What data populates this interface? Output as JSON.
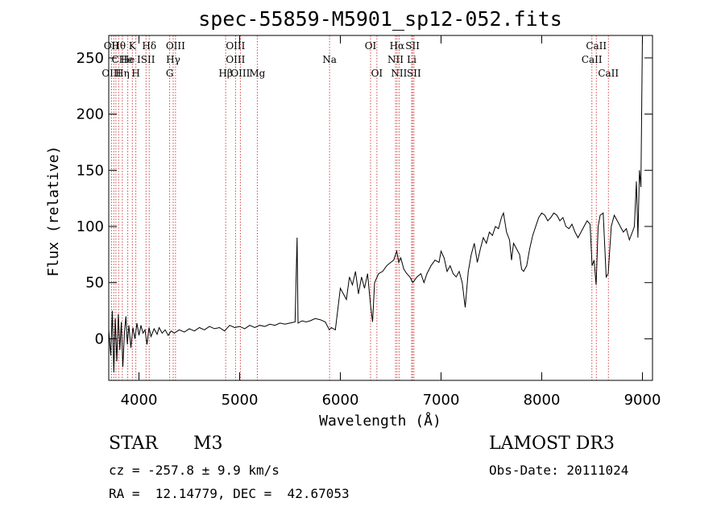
{
  "chart_data": {
    "type": "line",
    "title": "spec-55859-M5901_sp12-052.fits",
    "xlabel": "Wavelength (Å)",
    "ylabel": "Flux (relative)",
    "xlim": [
      3700,
      9100
    ],
    "ylim": [
      -37,
      270
    ],
    "x_ticks": [
      4000,
      5000,
      6000,
      7000,
      8000,
      9000
    ],
    "y_ticks": [
      0,
      50,
      100,
      150,
      200,
      250
    ],
    "series": [
      {
        "name": "spectrum",
        "points": [
          [
            3700,
            8
          ],
          [
            3720,
            -15
          ],
          [
            3735,
            25
          ],
          [
            3750,
            -30
          ],
          [
            3765,
            18
          ],
          [
            3780,
            -20
          ],
          [
            3795,
            22
          ],
          [
            3810,
            -10
          ],
          [
            3825,
            15
          ],
          [
            3840,
            -25
          ],
          [
            3855,
            5
          ],
          [
            3870,
            20
          ],
          [
            3885,
            -5
          ],
          [
            3900,
            12
          ],
          [
            3920,
            -8
          ],
          [
            3940,
            10
          ],
          [
            3960,
            0
          ],
          [
            3980,
            14
          ],
          [
            4000,
            3
          ],
          [
            4020,
            12
          ],
          [
            4040,
            5
          ],
          [
            4060,
            8
          ],
          [
            4080,
            -5
          ],
          [
            4100,
            10
          ],
          [
            4120,
            2
          ],
          [
            4150,
            9
          ],
          [
            4180,
            4
          ],
          [
            4200,
            10
          ],
          [
            4230,
            5
          ],
          [
            4260,
            8
          ],
          [
            4290,
            3
          ],
          [
            4320,
            7
          ],
          [
            4350,
            5
          ],
          [
            4400,
            8
          ],
          [
            4450,
            6
          ],
          [
            4500,
            9
          ],
          [
            4550,
            7
          ],
          [
            4600,
            10
          ],
          [
            4650,
            8
          ],
          [
            4700,
            11
          ],
          [
            4750,
            9
          ],
          [
            4800,
            10
          ],
          [
            4850,
            7
          ],
          [
            4900,
            12
          ],
          [
            4950,
            10
          ],
          [
            5000,
            11
          ],
          [
            5050,
            9
          ],
          [
            5100,
            12
          ],
          [
            5150,
            10
          ],
          [
            5200,
            12
          ],
          [
            5250,
            11
          ],
          [
            5300,
            13
          ],
          [
            5350,
            12
          ],
          [
            5400,
            14
          ],
          [
            5450,
            13
          ],
          [
            5500,
            14
          ],
          [
            5550,
            15
          ],
          [
            5570,
            90
          ],
          [
            5580,
            14
          ],
          [
            5620,
            16
          ],
          [
            5660,
            15
          ],
          [
            5700,
            16
          ],
          [
            5750,
            18
          ],
          [
            5800,
            17
          ],
          [
            5850,
            15
          ],
          [
            5890,
            8
          ],
          [
            5910,
            10
          ],
          [
            5950,
            8
          ],
          [
            6000,
            45
          ],
          [
            6030,
            40
          ],
          [
            6060,
            35
          ],
          [
            6090,
            55
          ],
          [
            6120,
            48
          ],
          [
            6150,
            60
          ],
          [
            6180,
            40
          ],
          [
            6210,
            55
          ],
          [
            6240,
            45
          ],
          [
            6270,
            58
          ],
          [
            6300,
            30
          ],
          [
            6320,
            15
          ],
          [
            6340,
            50
          ],
          [
            6380,
            58
          ],
          [
            6420,
            60
          ],
          [
            6460,
            65
          ],
          [
            6500,
            68
          ],
          [
            6530,
            70
          ],
          [
            6560,
            78
          ],
          [
            6580,
            68
          ],
          [
            6600,
            72
          ],
          [
            6630,
            62
          ],
          [
            6660,
            58
          ],
          [
            6690,
            55
          ],
          [
            6720,
            50
          ],
          [
            6760,
            55
          ],
          [
            6800,
            58
          ],
          [
            6830,
            50
          ],
          [
            6860,
            58
          ],
          [
            6900,
            65
          ],
          [
            6940,
            70
          ],
          [
            6980,
            68
          ],
          [
            7000,
            78
          ],
          [
            7030,
            72
          ],
          [
            7060,
            60
          ],
          [
            7090,
            65
          ],
          [
            7120,
            58
          ],
          [
            7150,
            55
          ],
          [
            7180,
            60
          ],
          [
            7210,
            50
          ],
          [
            7240,
            28
          ],
          [
            7270,
            60
          ],
          [
            7300,
            75
          ],
          [
            7330,
            85
          ],
          [
            7360,
            68
          ],
          [
            7390,
            80
          ],
          [
            7420,
            90
          ],
          [
            7450,
            85
          ],
          [
            7480,
            95
          ],
          [
            7510,
            92
          ],
          [
            7540,
            100
          ],
          [
            7570,
            98
          ],
          [
            7600,
            108
          ],
          [
            7620,
            112
          ],
          [
            7650,
            95
          ],
          [
            7680,
            88
          ],
          [
            7700,
            70
          ],
          [
            7720,
            85
          ],
          [
            7750,
            80
          ],
          [
            7780,
            75
          ],
          [
            7800,
            62
          ],
          [
            7820,
            60
          ],
          [
            7850,
            65
          ],
          [
            7880,
            80
          ],
          [
            7910,
            92
          ],
          [
            7940,
            100
          ],
          [
            7970,
            108
          ],
          [
            8000,
            112
          ],
          [
            8030,
            110
          ],
          [
            8060,
            105
          ],
          [
            8090,
            108
          ],
          [
            8120,
            112
          ],
          [
            8150,
            110
          ],
          [
            8180,
            105
          ],
          [
            8210,
            108
          ],
          [
            8240,
            100
          ],
          [
            8270,
            98
          ],
          [
            8300,
            102
          ],
          [
            8330,
            95
          ],
          [
            8360,
            90
          ],
          [
            8390,
            95
          ],
          [
            8420,
            100
          ],
          [
            8450,
            105
          ],
          [
            8480,
            102
          ],
          [
            8500,
            65
          ],
          [
            8520,
            70
          ],
          [
            8540,
            48
          ],
          [
            8560,
            100
          ],
          [
            8580,
            110
          ],
          [
            8610,
            112
          ],
          [
            8640,
            55
          ],
          [
            8660,
            58
          ],
          [
            8690,
            100
          ],
          [
            8720,
            110
          ],
          [
            8750,
            105
          ],
          [
            8780,
            100
          ],
          [
            8810,
            95
          ],
          [
            8840,
            98
          ],
          [
            8870,
            88
          ],
          [
            8900,
            95
          ],
          [
            8920,
            100
          ],
          [
            8940,
            140
          ],
          [
            8955,
            90
          ],
          [
            8970,
            150
          ],
          [
            8985,
            135
          ],
          [
            9000,
            270
          ]
        ]
      }
    ],
    "spectral_lines": [
      {
        "label": "Hθ",
        "wavelength": 3798,
        "row": 1
      },
      {
        "label": "OII",
        "wavelength": 3727,
        "row": 1
      },
      {
        "label": "K",
        "wavelength": 3934,
        "row": 1
      },
      {
        "label": "Hδ",
        "wavelength": 4102,
        "row": 1
      },
      {
        "label": "OIII",
        "wavelength": 4363,
        "row": 1
      },
      {
        "label": "OIII",
        "wavelength": 4959,
        "row": 1
      },
      {
        "label": "OI",
        "wavelength": 6300,
        "row": 1
      },
      {
        "label": "Hα",
        "wavelength": 6563,
        "row": 1
      },
      {
        "label": "SII",
        "wavelength": 6717,
        "row": 1
      },
      {
        "label": "CaII",
        "wavelength": 8542,
        "row": 1
      },
      {
        "label": "CHe",
        "wavelength": 3835,
        "row": 2
      },
      {
        "label": "He",
        "wavelength": 3889,
        "row": 2
      },
      {
        "label": "ISII",
        "wavelength": 4070,
        "row": 2
      },
      {
        "label": "Hγ",
        "wavelength": 4340,
        "row": 2
      },
      {
        "label": "OIII",
        "wavelength": 4959,
        "row": 2
      },
      {
        "label": "Na",
        "wavelength": 5893,
        "row": 2
      },
      {
        "label": "NII",
        "wavelength": 6548,
        "row": 2
      },
      {
        "label": "Li",
        "wavelength": 6708,
        "row": 2
      },
      {
        "label": "CaII",
        "wavelength": 8498,
        "row": 2
      },
      {
        "label": "OIII",
        "wavelength": 3727,
        "row": 3
      },
      {
        "label": "Hη",
        "wavelength": 3835,
        "row": 3
      },
      {
        "label": "H",
        "wavelength": 3969,
        "row": 3
      },
      {
        "label": "G",
        "wavelength": 4305,
        "row": 3
      },
      {
        "label": "Hβ",
        "wavelength": 4861,
        "row": 3
      },
      {
        "label": "OIII",
        "wavelength": 5007,
        "row": 3
      },
      {
        "label": "Mg",
        "wavelength": 5175,
        "row": 3
      },
      {
        "label": "OI",
        "wavelength": 6363,
        "row": 3
      },
      {
        "label": "NII",
        "wavelength": 6583,
        "row": 3
      },
      {
        "label": "SII",
        "wavelength": 6731,
        "row": 3
      },
      {
        "label": "CaII",
        "wavelength": 8662,
        "row": 3
      }
    ],
    "line_markers": [
      3727,
      3750,
      3771,
      3798,
      3835,
      3889,
      3934,
      3969,
      4070,
      4102,
      4305,
      4340,
      4363,
      4861,
      4959,
      5007,
      5175,
      5893,
      6300,
      6363,
      6548,
      6563,
      6583,
      6708,
      6717,
      6731,
      8498,
      8542,
      8662
    ],
    "line_color": "#cc3333"
  },
  "info": {
    "class_label": "STAR",
    "subclass_label": "M3",
    "survey": "LAMOST DR3",
    "redshift": "cz = -257.8 ± 9.9 km/s",
    "obs_date": "Obs-Date: 20111024",
    "coords": "RA =  12.14779, DEC =  42.67053"
  }
}
